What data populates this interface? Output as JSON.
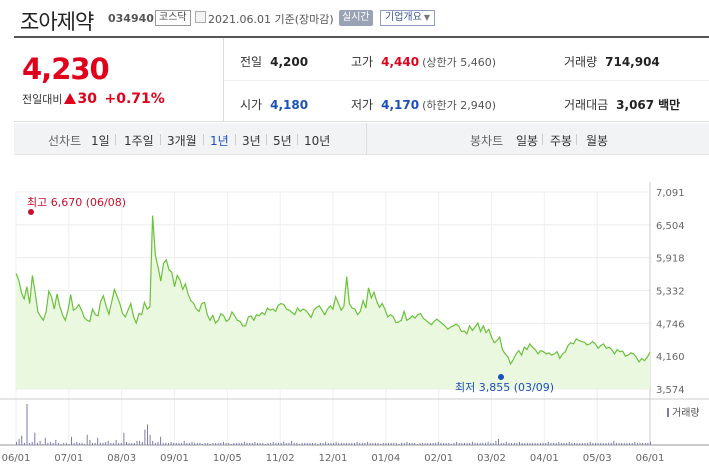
{
  "stock": {
    "name": "조아제약",
    "code": "034940",
    "market": "코스닥",
    "date": "2021.06.01 기준(장마감)",
    "realtime": "실시간",
    "company_info": "기업개요"
  },
  "summary": {
    "price": "4,230",
    "change_label": "전일대비",
    "change": "30",
    "change_pct": "+0.71%",
    "prev_label": "전일",
    "prev": "4,200",
    "open_label": "시가",
    "open": "4,180",
    "high_label": "고가",
    "high": "4,440",
    "upper_limit": "(상한가 5,460)",
    "low_label": "저가",
    "low": "4,170",
    "lower_limit": "(하한가 2,940)",
    "volume_label": "거래량",
    "volume": "714,904",
    "amount_label": "거래대금",
    "amount": "3,067",
    "amount_unit": "백만"
  },
  "periods": {
    "label": "선차트",
    "items": [
      "1일",
      "1주일",
      "3개월",
      "1년",
      "3년",
      "5년",
      "10년"
    ],
    "active": "1년",
    "candle_label": "봉차트",
    "candle_items": [
      "일봉",
      "주봉",
      "월봉"
    ]
  },
  "chart_data": {
    "type": "area",
    "x_ticks": [
      "06/01",
      "07/01",
      "08/03",
      "09/01",
      "10/05",
      "11/02",
      "12/01",
      "01/04",
      "02/01",
      "03/02",
      "04/01",
      "05/03",
      "06/01"
    ],
    "y_ticks": [
      "7,091",
      "6,504",
      "5,918",
      "5,332",
      "4,746",
      "4,160",
      "3,574"
    ],
    "ylim": [
      3574,
      7091
    ],
    "high_annotation": "최고 6,670 (06/08)",
    "low_annotation": "최저 3,855 (03/09)",
    "volume_legend": "거래량",
    "colors": {
      "line": "#6ac13a",
      "fill": "#eaf8df",
      "high": "#c8102e",
      "low": "#1b4fbb",
      "volume": "#7a7ab3"
    },
    "price_series": [
      5640,
      5520,
      5290,
      5180,
      5400,
      5100,
      5600,
      5300,
      4950,
      4870,
      4800,
      4950,
      5320,
      5220,
      5000,
      5270,
      5050,
      4900,
      4800,
      4970,
      5260,
      4980,
      5010,
      5080,
      4980,
      4850,
      4800,
      4780,
      5000,
      4900,
      4880,
      5140,
      5240,
      5050,
      4910,
      5120,
      5350,
      5230,
      5100,
      4920,
      4860,
      4980,
      5100,
      4870,
      4750,
      4920,
      4900,
      5120,
      5000,
      5040,
      6670,
      5960,
      5750,
      5500,
      5820,
      5880,
      5700,
      5660,
      5400,
      5600,
      5520,
      5350,
      5450,
      5260,
      5150,
      5100,
      5000,
      4960,
      5100,
      5120,
      4900,
      4800,
      4890,
      4750,
      4800,
      4920,
      4880,
      4780,
      4820,
      4950,
      4880,
      4800,
      4780,
      4700,
      4700,
      4860,
      4880,
      4800,
      4900,
      4880,
      4940,
      4900,
      5020,
      4980,
      5000,
      4960,
      5070,
      5100,
      5080,
      5000,
      4980,
      4940,
      4900,
      5020,
      4960,
      5000,
      4980,
      4920,
      4850,
      4980,
      5030,
      5060,
      4980,
      4900,
      5000,
      5060,
      5000,
      5220,
      5100,
      4980,
      5050,
      5580,
      5100,
      5020,
      5000,
      4900,
      4960,
      5150,
      5020,
      5380,
      5200,
      5300,
      5140,
      5030,
      5100,
      5000,
      4860,
      4900,
      4870,
      4760,
      4770,
      4800,
      4960,
      4800,
      4830,
      4880,
      4840,
      4900,
      4920,
      4840,
      4800,
      4760,
      4720,
      4780,
      4820,
      4780,
      4740,
      4700,
      4640,
      4680,
      4700,
      4730,
      4700,
      4600,
      4610,
      4560,
      4700,
      4620,
      4680,
      4750,
      4600,
      4700,
      4580,
      4640,
      4500,
      4400,
      4440,
      4500,
      4280,
      4200,
      4150,
      4020,
      4100,
      4200,
      4260,
      4180,
      4320,
      4280,
      4380,
      4320,
      4280,
      4200,
      4260,
      4240,
      4200,
      4220,
      4180,
      4200,
      4240,
      4120,
      4200,
      4240,
      4350,
      4400,
      4380,
      4470,
      4440,
      4420,
      4410,
      4360,
      4380,
      4420,
      4380,
      4300,
      4350,
      4380,
      4300,
      4320,
      4280,
      4200,
      4280,
      4240,
      4250,
      4160,
      4180,
      4220,
      4200,
      4140,
      4060,
      4120,
      4080,
      4140,
      4230
    ],
    "volume_series": [
      3,
      6,
      9,
      2,
      40,
      2,
      3,
      12,
      2,
      4,
      1,
      7,
      2,
      3,
      2,
      5,
      2,
      1,
      2,
      2,
      1,
      8,
      2,
      3,
      2,
      2,
      1,
      10,
      5,
      2,
      2,
      7,
      2,
      2,
      3,
      4,
      2,
      2,
      5,
      2,
      2,
      12,
      3,
      2,
      2,
      2,
      4,
      4,
      3,
      15,
      20,
      10,
      4,
      2,
      3,
      8,
      2,
      2,
      2,
      3,
      2,
      2,
      2,
      2,
      4,
      2,
      2,
      3,
      2,
      2,
      2,
      1,
      2,
      2,
      1,
      2,
      2,
      2,
      2,
      3,
      2,
      2,
      1,
      2,
      2,
      2,
      2,
      3,
      2,
      2,
      2,
      3,
      2,
      2,
      2,
      1,
      2,
      2,
      3,
      2,
      2,
      2,
      3,
      2,
      2,
      4,
      2,
      2,
      1,
      2,
      2,
      2,
      2,
      2,
      2,
      1,
      2,
      2,
      3,
      2,
      2,
      2,
      3,
      2,
      2,
      2,
      2,
      2,
      2,
      2,
      3,
      2,
      2,
      2,
      3,
      2,
      2,
      2,
      2,
      1,
      2,
      2,
      2,
      2,
      2,
      2,
      1,
      2,
      2,
      3,
      2,
      2,
      2,
      1,
      2,
      2,
      2,
      2,
      2,
      2,
      2,
      3,
      2,
      2,
      2,
      2,
      1,
      2,
      3,
      2,
      2,
      2,
      2,
      2,
      3,
      2,
      2,
      2,
      2,
      2,
      3,
      2,
      2,
      4,
      6,
      2,
      2,
      3,
      2,
      2,
      2,
      2,
      3,
      2,
      2,
      2,
      2,
      2,
      2,
      2,
      2,
      2,
      2,
      3,
      2,
      2,
      2,
      3,
      2,
      2,
      2,
      3,
      2,
      2,
      2,
      2,
      2,
      2,
      2,
      3,
      2,
      2,
      2,
      2,
      2,
      2,
      2,
      2,
      4,
      2,
      2,
      2,
      2,
      2,
      2,
      2,
      3,
      2,
      2,
      2,
      2,
      2,
      3
    ]
  }
}
